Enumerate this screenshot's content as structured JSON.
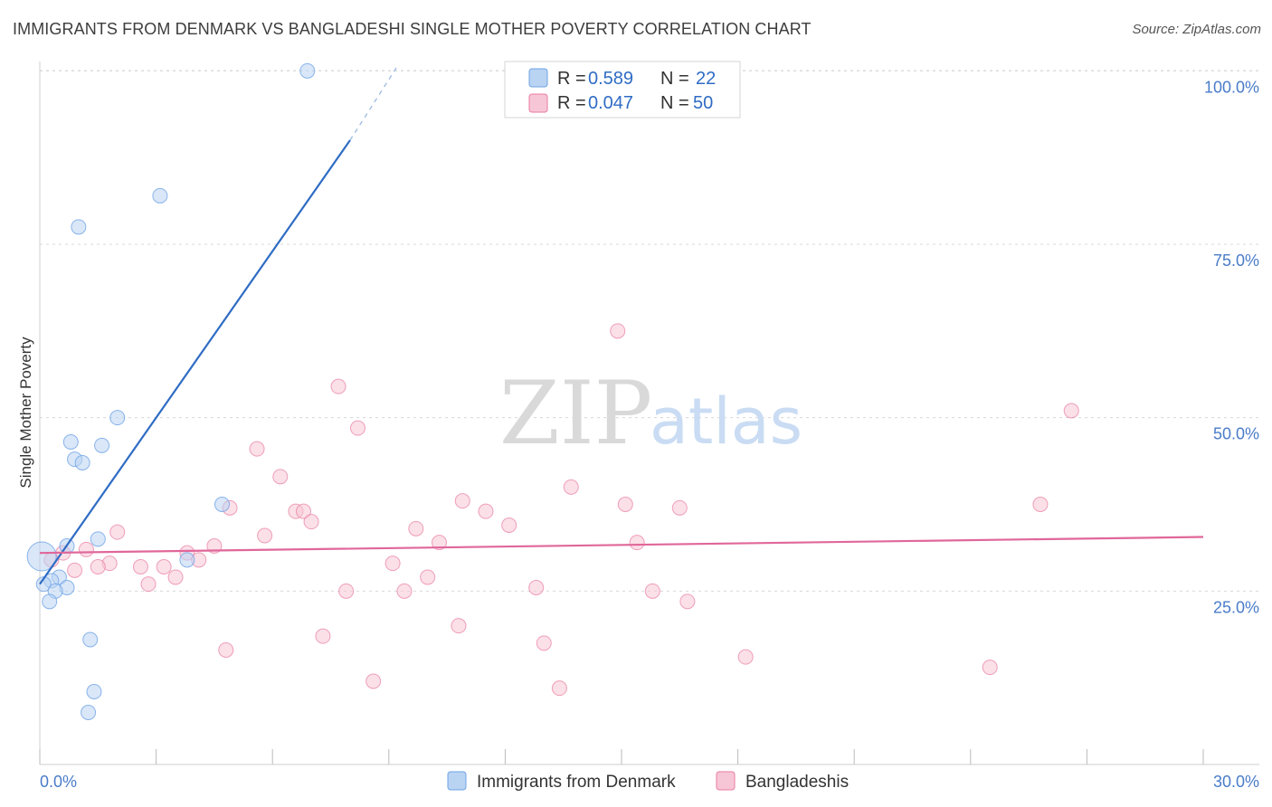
{
  "header": {
    "title": "IMMIGRANTS FROM DENMARK VS BANGLADESHI SINGLE MOTHER POVERTY CORRELATION CHART",
    "source": "Source: ZipAtlas.com"
  },
  "watermark": {
    "zip": "ZIP",
    "atlas": "atlas"
  },
  "colors": {
    "blue": "#6fa3e6",
    "blue_fill": "#b9d3f3",
    "blue_line": "#2f6cc4",
    "pink": "#e87aa1",
    "pink_fill": "#f7c6d6",
    "pink_line": "#e0679a",
    "grid": "#d8d8d8",
    "tick_text": "#4a7cc9"
  },
  "legend": {
    "rows": [
      {
        "r_label": "R = ",
        "r_value": "0.589",
        "n_label": "N = ",
        "n_value": "22"
      },
      {
        "r_label": "R = ",
        "r_value": "0.047",
        "n_label": "N = ",
        "n_value": "50"
      }
    ]
  },
  "chart_data": {
    "type": "scatter",
    "title": "IMMIGRANTS FROM DENMARK VS BANGLADESHI SINGLE MOTHER POVERTY CORRELATION CHART",
    "xlabel": "",
    "ylabel": "Single Mother Poverty",
    "xlim": [
      0,
      30
    ],
    "ylim": [
      0,
      102
    ],
    "x_ticks_labels": [
      "0.0%",
      "30.0%"
    ],
    "y_ticks": [
      25,
      50,
      75,
      100
    ],
    "y_tick_labels": [
      "25.0%",
      "50.0%",
      "75.0%",
      "100.0%"
    ],
    "grid": "horizontal dashed",
    "legend_position": "top-center",
    "series": [
      {
        "name": "Immigrants from Denmark",
        "r": 0.589,
        "n": 22,
        "trend": {
          "x": [
            0.0,
            8.0
          ],
          "y": [
            26.0,
            90.0
          ],
          "dashed_to": [
            9.2,
            100.5
          ]
        },
        "points": [
          [
            6.9,
            100.0
          ],
          [
            3.1,
            82.0
          ],
          [
            1.0,
            77.5
          ],
          [
            2.0,
            50.0
          ],
          [
            0.8,
            46.5
          ],
          [
            1.6,
            46.0
          ],
          [
            0.9,
            44.0
          ],
          [
            1.1,
            43.5
          ],
          [
            4.7,
            37.5
          ],
          [
            1.5,
            32.5
          ],
          [
            0.7,
            31.5
          ],
          [
            3.8,
            29.5
          ],
          [
            0.5,
            27.0
          ],
          [
            0.3,
            26.5
          ],
          [
            0.1,
            26.0
          ],
          [
            0.7,
            25.5
          ],
          [
            0.4,
            25.0
          ],
          [
            0.25,
            23.5
          ],
          [
            1.3,
            18.0
          ],
          [
            1.4,
            10.5
          ],
          [
            1.25,
            7.5
          ],
          [
            0.05,
            30.0
          ]
        ]
      },
      {
        "name": "Bangladeshis",
        "r": 0.047,
        "n": 50,
        "trend": {
          "x": [
            0.0,
            30.0
          ],
          "y": [
            30.5,
            32.8
          ]
        },
        "points": [
          [
            14.9,
            62.5
          ],
          [
            7.7,
            54.5
          ],
          [
            26.6,
            51.0
          ],
          [
            8.2,
            48.5
          ],
          [
            5.6,
            45.5
          ],
          [
            6.2,
            41.5
          ],
          [
            13.7,
            40.0
          ],
          [
            10.9,
            38.0
          ],
          [
            15.1,
            37.5
          ],
          [
            25.8,
            37.5
          ],
          [
            16.5,
            37.0
          ],
          [
            4.9,
            37.0
          ],
          [
            6.6,
            36.5
          ],
          [
            11.5,
            36.5
          ],
          [
            6.8,
            36.5
          ],
          [
            7.0,
            35.0
          ],
          [
            12.1,
            34.5
          ],
          [
            9.7,
            34.0
          ],
          [
            2.0,
            33.5
          ],
          [
            5.8,
            33.0
          ],
          [
            10.3,
            32.0
          ],
          [
            15.4,
            32.0
          ],
          [
            4.5,
            31.5
          ],
          [
            1.2,
            31.0
          ],
          [
            3.8,
            30.5
          ],
          [
            4.1,
            29.5
          ],
          [
            1.8,
            29.0
          ],
          [
            9.1,
            29.0
          ],
          [
            1.5,
            28.5
          ],
          [
            2.6,
            28.5
          ],
          [
            3.2,
            28.5
          ],
          [
            0.9,
            28.0
          ],
          [
            10.0,
            27.0
          ],
          [
            3.5,
            27.0
          ],
          [
            2.8,
            26.0
          ],
          [
            12.8,
            25.5
          ],
          [
            7.9,
            25.0
          ],
          [
            9.4,
            25.0
          ],
          [
            15.8,
            25.0
          ],
          [
            16.7,
            23.5
          ],
          [
            10.8,
            20.0
          ],
          [
            7.3,
            18.5
          ],
          [
            13.0,
            17.5
          ],
          [
            4.8,
            16.5
          ],
          [
            18.2,
            15.5
          ],
          [
            24.5,
            14.0
          ],
          [
            8.6,
            12.0
          ],
          [
            13.4,
            11.0
          ],
          [
            0.3,
            29.5
          ],
          [
            0.6,
            30.5
          ]
        ]
      }
    ]
  }
}
